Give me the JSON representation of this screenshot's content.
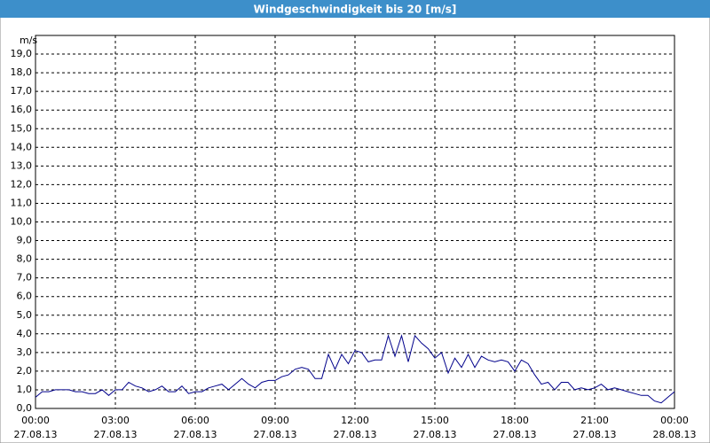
{
  "chart_data": {
    "type": "line",
    "title": "Windgeschwindigkeit bis 20 [m/s]",
    "y_label": "m/s",
    "x": [
      0,
      0.25,
      0.5,
      0.75,
      1,
      1.25,
      1.5,
      1.75,
      2,
      2.25,
      2.5,
      2.75,
      3,
      3.25,
      3.5,
      3.75,
      4,
      4.25,
      4.5,
      4.75,
      5,
      5.25,
      5.5,
      5.75,
      6,
      6.25,
      6.5,
      6.75,
      7,
      7.25,
      7.5,
      7.75,
      8,
      8.25,
      8.5,
      8.75,
      9,
      9.25,
      9.5,
      9.75,
      10,
      10.25,
      10.5,
      10.75,
      11,
      11.25,
      11.5,
      11.75,
      12,
      12.25,
      12.5,
      12.75,
      13,
      13.25,
      13.5,
      13.75,
      14,
      14.25,
      14.5,
      14.75,
      15,
      15.25,
      15.5,
      15.75,
      16,
      16.25,
      16.5,
      16.75,
      17,
      17.25,
      17.5,
      17.75,
      18,
      18.25,
      18.5,
      18.75,
      19,
      19.25,
      19.5,
      19.75,
      20,
      20.25,
      20.5,
      20.75,
      21,
      21.25,
      21.5,
      21.75,
      22,
      22.25,
      22.5,
      22.75,
      23,
      23.25,
      23.5,
      23.75,
      24
    ],
    "series": [
      {
        "name": "Windgeschwindigkeit",
        "color": "#00008b",
        "values": [
          0.6,
          0.9,
          0.9,
          1.0,
          1.0,
          1.0,
          0.9,
          0.9,
          0.8,
          0.8,
          1.0,
          0.7,
          1.0,
          1.0,
          1.4,
          1.2,
          1.1,
          0.9,
          1.0,
          1.2,
          0.9,
          0.9,
          1.2,
          0.8,
          0.9,
          0.9,
          1.1,
          1.2,
          1.3,
          1.0,
          1.3,
          1.6,
          1.3,
          1.1,
          1.4,
          1.5,
          1.5,
          1.7,
          1.8,
          2.1,
          2.2,
          2.1,
          1.6,
          1.6,
          2.9,
          2.1,
          2.9,
          2.4,
          3.1,
          3.0,
          2.5,
          2.6,
          2.6,
          3.9,
          2.8,
          3.9,
          2.5,
          3.9,
          3.5,
          3.2,
          2.7,
          3.0,
          1.9,
          2.7,
          2.2,
          2.9,
          2.2,
          2.8,
          2.6,
          2.5,
          2.6,
          2.5,
          2.0,
          2.6,
          2.4,
          1.8,
          1.3,
          1.4,
          1.0,
          1.4,
          1.4,
          1.0,
          1.1,
          1.0,
          1.1,
          1.3,
          1.0,
          1.1,
          1.0,
          0.9,
          0.8,
          0.7,
          0.7,
          0.4,
          0.3,
          0.6,
          0.9
        ]
      }
    ],
    "xlim": [
      0,
      24
    ],
    "xticks": [
      {
        "value": 0,
        "label": "00:00",
        "date": "27.08.13"
      },
      {
        "value": 3,
        "label": "03:00",
        "date": "27.08.13"
      },
      {
        "value": 6,
        "label": "06:00",
        "date": "27.08.13"
      },
      {
        "value": 9,
        "label": "09:00",
        "date": "27.08.13"
      },
      {
        "value": 12,
        "label": "12:00",
        "date": "27.08.13"
      },
      {
        "value": 15,
        "label": "15:00",
        "date": "27.08.13"
      },
      {
        "value": 18,
        "label": "18:00",
        "date": "27.08.13"
      },
      {
        "value": 21,
        "label": "21:00",
        "date": "27.08.13"
      },
      {
        "value": 24,
        "label": "00:00",
        "date": "28.08.13"
      }
    ],
    "ylim": [
      0,
      20
    ],
    "yticks": [
      {
        "value": 0,
        "label": "0,0"
      },
      {
        "value": 1,
        "label": "1,0"
      },
      {
        "value": 2,
        "label": "2,0"
      },
      {
        "value": 3,
        "label": "3,0"
      },
      {
        "value": 4,
        "label": "4,0"
      },
      {
        "value": 5,
        "label": "5,0"
      },
      {
        "value": 6,
        "label": "6,0"
      },
      {
        "value": 7,
        "label": "7,0"
      },
      {
        "value": 8,
        "label": "8,0"
      },
      {
        "value": 9,
        "label": "9,0"
      },
      {
        "value": 10,
        "label": "10,0"
      },
      {
        "value": 11,
        "label": "11,0"
      },
      {
        "value": 12,
        "label": "12,0"
      },
      {
        "value": 13,
        "label": "13,0"
      },
      {
        "value": 14,
        "label": "14,0"
      },
      {
        "value": 15,
        "label": "15,0"
      },
      {
        "value": 16,
        "label": "16,0"
      },
      {
        "value": 17,
        "label": "17,0"
      },
      {
        "value": 18,
        "label": "18,0"
      },
      {
        "value": 19,
        "label": "19,0"
      }
    ],
    "grid": true
  }
}
